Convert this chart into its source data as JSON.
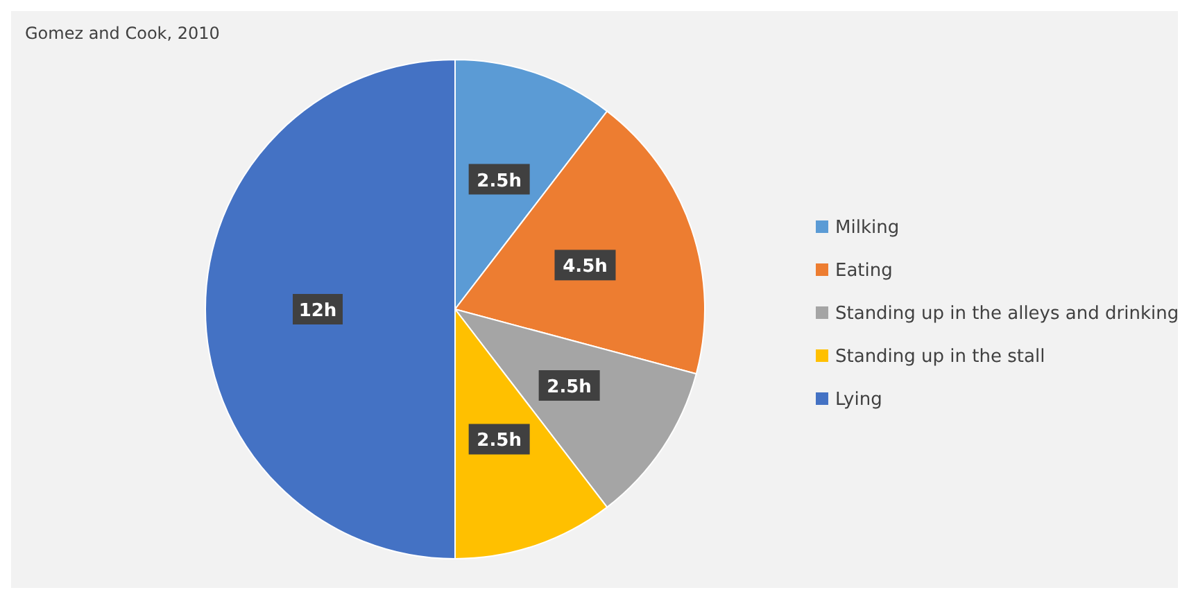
{
  "chart_data": {
    "type": "pie",
    "annotations": [
      "Gomez and Cook, 2010"
    ],
    "categories": [
      "Milking",
      "Eating",
      "Standing up in the alleys and drinking",
      "Standing up in the stall",
      "Lying"
    ],
    "values": [
      2.5,
      4.5,
      2.5,
      2.5,
      12
    ],
    "colors": [
      "#5b9bd5",
      "#ed7d31",
      "#a5a5a5",
      "#ffc000",
      "#4472c4"
    ],
    "value_labels": [
      "2.5h",
      "4.5h",
      "2.5h",
      "2.5h",
      "12h"
    ],
    "legend": "right"
  }
}
